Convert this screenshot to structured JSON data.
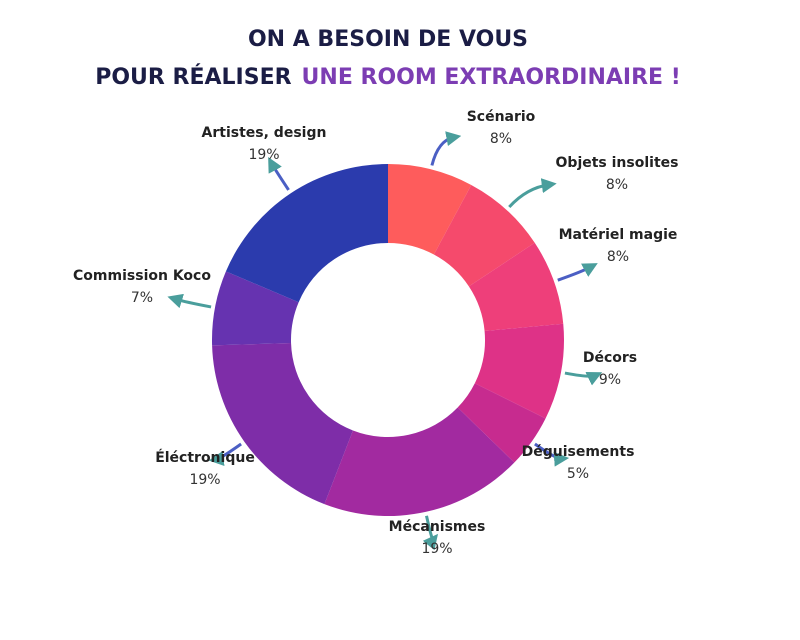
{
  "chart_data": {
    "type": "donut",
    "title_lines": [
      [
        "ON A BESOIN DE VOUS"
      ],
      [
        "POUR RÉALISER",
        "UNE ROOM EXTRAORDINAIRE !"
      ]
    ],
    "categories": [
      "Scénario",
      "Objets insolites",
      "Matériel magie",
      "Décors",
      "Déguisements",
      "Mécanismes",
      "Éléctronique",
      "Commission Koco",
      "Artistes, design"
    ],
    "values": [
      8,
      8,
      8,
      9,
      5,
      19,
      19,
      7,
      19
    ],
    "value_labels": [
      "8%",
      "8%",
      "8%",
      "9%",
      "5%",
      "19%",
      "19%",
      "7%",
      "19%"
    ],
    "colors": [
      "#fe5c5c",
      "#f54a6c",
      "#ee3f7a",
      "#de3287",
      "#c72b8f",
      "#a22aa0",
      "#7e2da8",
      "#6633b0",
      "#2b3bad"
    ]
  }
}
